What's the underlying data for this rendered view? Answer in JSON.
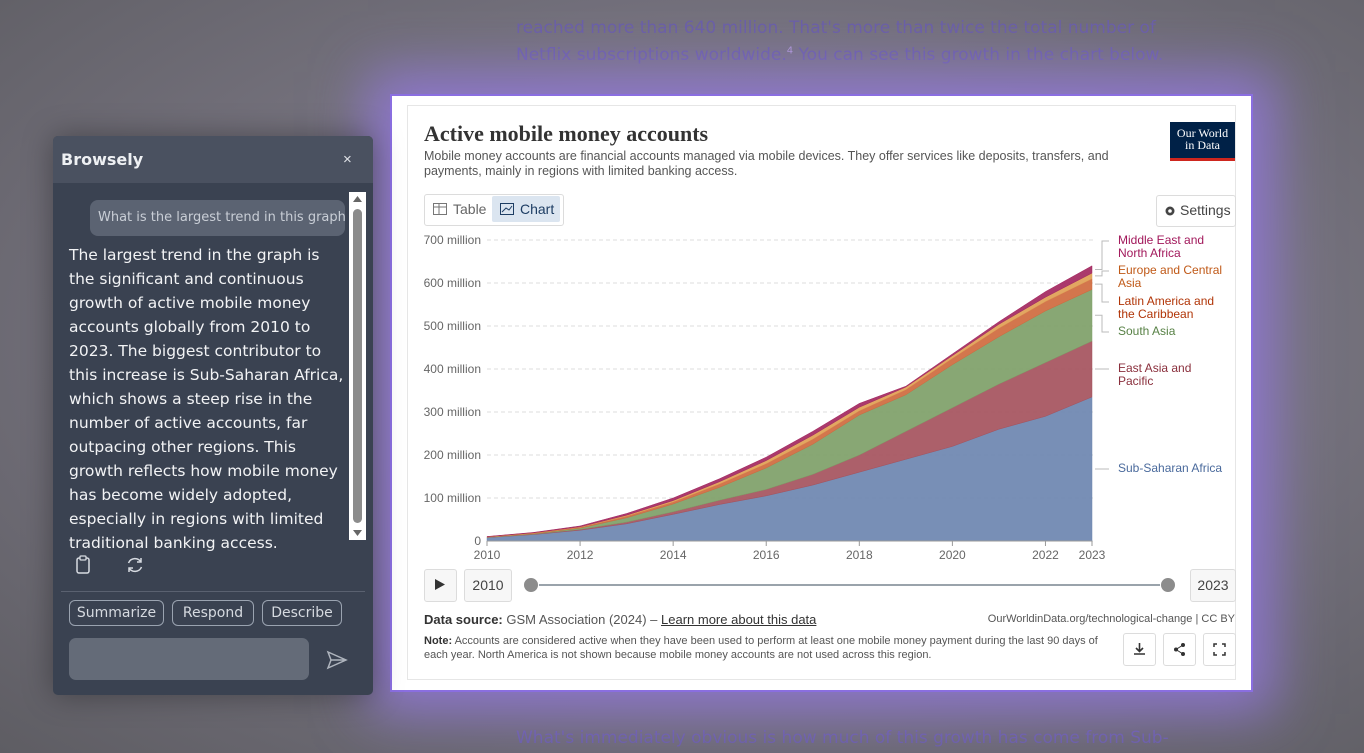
{
  "article": {
    "line_1": "reached more than 640 million. That's more than twice the total number of",
    "line_2": "Netflix subscriptions worldwide.",
    "footnote": "4",
    "line_2_rest": " You can see this growth in the chart below.",
    "bottom_line": "What's immediately obvious is how much of this growth has come from Sub-"
  },
  "browsely": {
    "title": "Browsely",
    "close": "×",
    "user_message": "What is the largest trend in this graph",
    "reply": "The largest trend in the graph is the significant and continuous growth of active mobile money accounts globally from 2010 to 2023. The biggest contributor to this increase is Sub-Saharan Africa, which shows a steep rise in the number of active accounts, far outpacing other regions. This growth reflects how mobile money has become widely adopted, especially in regions with limited traditional banking access.",
    "actions": [
      "Summarize",
      "Respond",
      "Describe"
    ]
  },
  "chart_card": {
    "logo_line_1": "Our World",
    "logo_line_2": "in Data",
    "tabs": [
      "Table",
      "Chart"
    ],
    "settings": "Settings",
    "timeline_start": "2010",
    "timeline_end": "2023",
    "source_label": "Data source:",
    "source": "GSM Association (2024) – ",
    "source_link": "Learn more about this data",
    "attribution": "OurWorldinData.org/technological-change | CC BY",
    "note_label": "Note:",
    "note": "Accounts are considered active when they have been used to perform at least one mobile money payment during the last 90 days of each year. North America is not shown because mobile money accounts are not used across this region."
  },
  "chart_data": {
    "type": "area",
    "stacked": true,
    "title": "Active mobile money accounts",
    "subtitle": "Mobile money accounts are financial accounts managed via mobile devices. They offer services like deposits, transfers, and payments, mainly in regions with limited banking access.",
    "x": [
      2010,
      2011,
      2012,
      2013,
      2014,
      2015,
      2016,
      2017,
      2018,
      2019,
      2020,
      2021,
      2022,
      2023
    ],
    "xlim": [
      2010,
      2023
    ],
    "xticks": [
      2010,
      2012,
      2014,
      2016,
      2018,
      2020,
      2022,
      2023
    ],
    "ylim": [
      0,
      700000000
    ],
    "yticks": [
      0,
      {
        "value": 100000000,
        "label": "100 million"
      },
      {
        "value": 200000000,
        "label": "200 million"
      },
      {
        "value": 300000000,
        "label": "300 million"
      },
      {
        "value": 400000000,
        "label": "400 million"
      },
      {
        "value": 500000000,
        "label": "500 million"
      },
      {
        "value": 600000000,
        "label": "600 million"
      },
      {
        "value": 700000000,
        "label": "700 million"
      }
    ],
    "grid": true,
    "series": [
      {
        "name": "Sub-Saharan Africa",
        "color": "#6d86b0",
        "label_color": "#4a6a9c",
        "values": [
          8000000,
          15000000,
          25000000,
          40000000,
          62000000,
          85000000,
          105000000,
          130000000,
          160000000,
          190000000,
          220000000,
          260000000,
          290000000,
          335000000
        ]
      },
      {
        "name": "East Asia and Pacific",
        "color": "#a5525d",
        "label_color": "#8a2f3c",
        "values": [
          500000,
          1000000,
          2000000,
          4000000,
          6000000,
          10000000,
          15000000,
          25000000,
          40000000,
          65000000,
          90000000,
          105000000,
          125000000,
          130000000
        ]
      },
      {
        "name": "South Asia",
        "color": "#7ea068",
        "label_color": "#578145",
        "values": [
          500000,
          1000000,
          3000000,
          10000000,
          18000000,
          30000000,
          50000000,
          70000000,
          93000000,
          85000000,
          100000000,
          110000000,
          120000000,
          120000000
        ]
      },
      {
        "name": "Latin America and the Caribbean",
        "color": "#cf6a3e",
        "label_color": "#b13507",
        "values": [
          500000,
          1000000,
          2000000,
          4000000,
          5000000,
          8000000,
          10000000,
          12000000,
          10000000,
          12000000,
          15000000,
          20000000,
          22000000,
          25000000
        ]
      },
      {
        "name": "Europe and Central Asia",
        "color": "#e0a055",
        "label_color": "#c05917",
        "values": [
          500000,
          1000000,
          1000000,
          2000000,
          3000000,
          5000000,
          7000000,
          9000000,
          8000000,
          6000000,
          6000000,
          9000000,
          10000000,
          13000000
        ]
      },
      {
        "name": "Middle East and North Africa",
        "color": "#a3285f",
        "label_color": "#a2185b",
        "values": [
          500000,
          1000000,
          2000000,
          4000000,
          6000000,
          7000000,
          8000000,
          9000000,
          9000000,
          2000000,
          4000000,
          6000000,
          13000000,
          17000000
        ]
      }
    ]
  }
}
